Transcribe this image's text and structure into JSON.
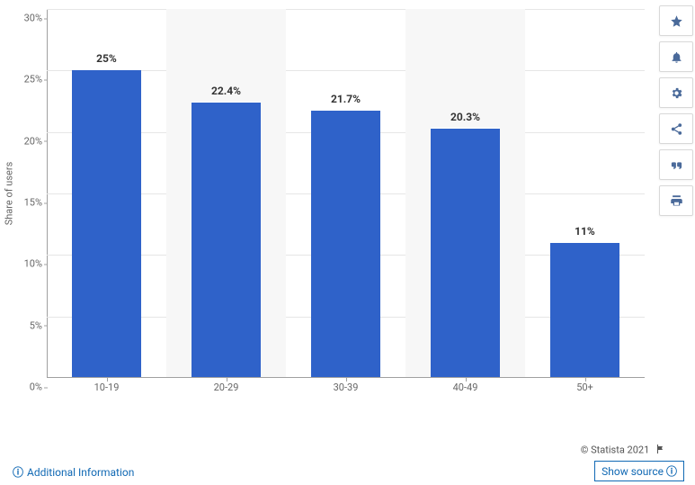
{
  "chart": {
    "type": "bar",
    "ylabel": "Share of users",
    "label_fontsize": 11,
    "bar_color": "#2f62c9",
    "background_color": "#ffffff",
    "alt_band_color": "#f7f7f7",
    "grid_color": "#e6e6e6",
    "axis_color": "#a0a0a0",
    "text_color": "#666666",
    "value_label_color": "#333333",
    "value_label_fontsize": 12,
    "tick_fontsize": 11,
    "ylim": [
      0,
      30
    ],
    "ytick_step": 5,
    "yticks": [
      "0%",
      "5%",
      "10%",
      "15%",
      "20%",
      "25%",
      "30%"
    ],
    "categories": [
      "10-19",
      "20-29",
      "30-39",
      "40-49",
      "50+"
    ],
    "values": [
      25,
      22.4,
      21.7,
      20.3,
      11
    ],
    "value_labels": [
      "25%",
      "22.4%",
      "21.7%",
      "20.3%",
      "11%"
    ],
    "bar_width_ratio": 0.58
  },
  "toolbar": {
    "items": [
      {
        "name": "favorite",
        "icon": "star"
      },
      {
        "name": "notify",
        "icon": "bell"
      },
      {
        "name": "settings",
        "icon": "gear"
      },
      {
        "name": "share",
        "icon": "share"
      },
      {
        "name": "citation",
        "icon": "quote"
      },
      {
        "name": "print",
        "icon": "print"
      }
    ]
  },
  "footer": {
    "copyright": "© Statista 2021",
    "additional_info": "Additional Information",
    "show_source": "Show source",
    "link_color": "#1169b4"
  }
}
